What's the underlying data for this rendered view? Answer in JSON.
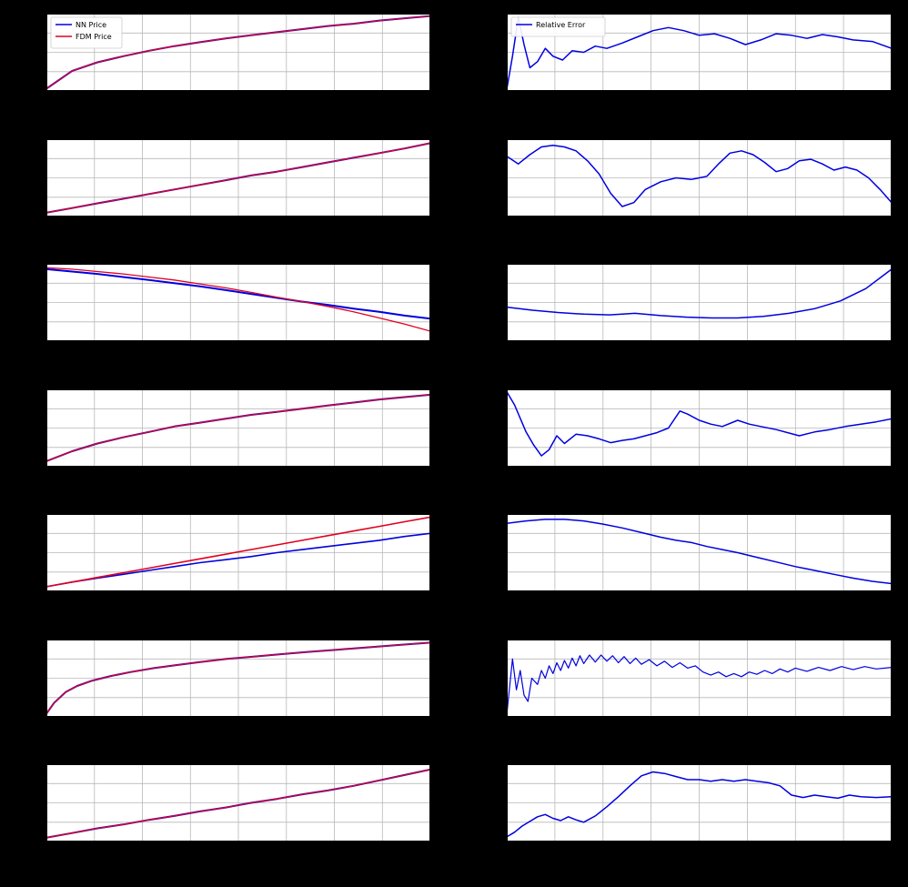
{
  "figure": {
    "background": "#000000",
    "axes_background": "#ffffff",
    "grid_color": "#b8b8b8",
    "spine_color": "#000000",
    "nn_color": "#0000e0",
    "fdm_color": "#e00020",
    "error_color": "#0000e0"
  },
  "chart_notes": "7x2 grid of matplotlib-style subplots on a black page background. Left column: NN Price vs FDM Price line charts. Right column: Relative Error line charts. Axis tick labels / subplot titles are not visible against the black background, so series values are captured in normalized axes coordinates (x: 0=left..1=right, y: 0=bottom..1=top). Grid is on; only the first row of subplots shows legends.",
  "chart_data": [
    {
      "id": "row1-price",
      "type": "line",
      "grid": true,
      "legend": {
        "position": "upper-left",
        "items": [
          {
            "label": "NN Price",
            "color": "#0000e0"
          },
          {
            "label": "FDM Price",
            "color": "#e00020"
          }
        ]
      },
      "x": [
        0,
        0.067,
        0.133,
        0.2,
        0.267,
        0.333,
        0.4,
        0.467,
        0.533,
        0.6,
        0.667,
        0.733,
        0.8,
        0.867,
        0.933,
        1
      ],
      "series": [
        {
          "name": "NN Price",
          "color": "#0000e0",
          "width": 2.0,
          "y": [
            0.03,
            0.26,
            0.37,
            0.45,
            0.52,
            0.58,
            0.63,
            0.68,
            0.72,
            0.76,
            0.8,
            0.84,
            0.87,
            0.91,
            0.94,
            0.97
          ]
        },
        {
          "name": "FDM Price",
          "color": "#e00020",
          "width": 1.3,
          "y": [
            0.03,
            0.26,
            0.37,
            0.45,
            0.52,
            0.58,
            0.63,
            0.68,
            0.72,
            0.76,
            0.8,
            0.84,
            0.87,
            0.91,
            0.94,
            0.97
          ]
        }
      ]
    },
    {
      "id": "row1-error",
      "type": "line",
      "grid": true,
      "legend": {
        "position": "upper-left",
        "items": [
          {
            "label": "Relative Error",
            "color": "#0000e0"
          }
        ]
      },
      "x": [
        0,
        0.015,
        0.03,
        0.045,
        0.06,
        0.08,
        0.1,
        0.12,
        0.145,
        0.17,
        0.2,
        0.23,
        0.26,
        0.3,
        0.34,
        0.38,
        0.42,
        0.46,
        0.5,
        0.54,
        0.58,
        0.62,
        0.66,
        0.7,
        0.74,
        0.78,
        0.82,
        0.86,
        0.9,
        0.95,
        1.0
      ],
      "series": [
        {
          "name": "Relative Error",
          "color": "#0000e0",
          "width": 1.5,
          "y": [
            0.02,
            0.45,
            0.95,
            0.6,
            0.3,
            0.38,
            0.55,
            0.45,
            0.4,
            0.52,
            0.5,
            0.58,
            0.55,
            0.62,
            0.7,
            0.78,
            0.82,
            0.78,
            0.72,
            0.74,
            0.68,
            0.6,
            0.66,
            0.74,
            0.72,
            0.68,
            0.73,
            0.7,
            0.66,
            0.64,
            0.55
          ]
        }
      ]
    },
    {
      "id": "row2-price",
      "type": "line",
      "grid": true,
      "legend": null,
      "x": [
        0,
        0.067,
        0.133,
        0.2,
        0.267,
        0.333,
        0.4,
        0.467,
        0.533,
        0.6,
        0.667,
        0.733,
        0.8,
        0.867,
        0.933,
        1
      ],
      "series": [
        {
          "name": "NN Price",
          "color": "#0000e0",
          "width": 2.0,
          "y": [
            0.05,
            0.11,
            0.17,
            0.23,
            0.29,
            0.35,
            0.41,
            0.47,
            0.53,
            0.58,
            0.64,
            0.7,
            0.76,
            0.82,
            0.88,
            0.95
          ]
        },
        {
          "name": "FDM Price",
          "color": "#e00020",
          "width": 1.3,
          "y": [
            0.05,
            0.11,
            0.17,
            0.23,
            0.29,
            0.35,
            0.41,
            0.47,
            0.53,
            0.58,
            0.64,
            0.7,
            0.76,
            0.82,
            0.88,
            0.95
          ]
        }
      ]
    },
    {
      "id": "row2-error",
      "type": "line",
      "grid": true,
      "legend": null,
      "x": [
        0,
        0.03,
        0.06,
        0.09,
        0.12,
        0.15,
        0.18,
        0.21,
        0.24,
        0.27,
        0.3,
        0.33,
        0.36,
        0.4,
        0.44,
        0.48,
        0.52,
        0.55,
        0.58,
        0.61,
        0.64,
        0.67,
        0.7,
        0.73,
        0.76,
        0.79,
        0.82,
        0.85,
        0.88,
        0.91,
        0.94,
        0.97,
        1.0
      ],
      "series": [
        {
          "name": "Relative Error",
          "color": "#0000e0",
          "width": 1.5,
          "y": [
            0.78,
            0.68,
            0.8,
            0.9,
            0.92,
            0.9,
            0.85,
            0.72,
            0.55,
            0.3,
            0.13,
            0.18,
            0.35,
            0.45,
            0.5,
            0.48,
            0.52,
            0.68,
            0.82,
            0.85,
            0.8,
            0.7,
            0.58,
            0.62,
            0.72,
            0.74,
            0.68,
            0.6,
            0.64,
            0.6,
            0.5,
            0.35,
            0.18
          ]
        }
      ]
    },
    {
      "id": "row3-price",
      "type": "line",
      "grid": true,
      "legend": null,
      "x": [
        0,
        0.067,
        0.133,
        0.2,
        0.267,
        0.333,
        0.4,
        0.467,
        0.533,
        0.6,
        0.667,
        0.733,
        0.8,
        0.867,
        0.933,
        1
      ],
      "series": [
        {
          "name": "NN Price",
          "color": "#0000e0",
          "width": 2.0,
          "y": [
            0.93,
            0.9,
            0.87,
            0.83,
            0.79,
            0.75,
            0.71,
            0.66,
            0.61,
            0.56,
            0.51,
            0.47,
            0.42,
            0.38,
            0.33,
            0.29
          ]
        },
        {
          "name": "FDM Price",
          "color": "#e00020",
          "width": 1.3,
          "y": [
            0.95,
            0.93,
            0.9,
            0.87,
            0.83,
            0.79,
            0.74,
            0.69,
            0.63,
            0.57,
            0.51,
            0.45,
            0.38,
            0.3,
            0.22,
            0.13
          ]
        }
      ]
    },
    {
      "id": "row3-error",
      "type": "line",
      "grid": true,
      "legend": null,
      "x": [
        0,
        0.067,
        0.133,
        0.2,
        0.267,
        0.333,
        0.4,
        0.467,
        0.533,
        0.6,
        0.667,
        0.733,
        0.8,
        0.867,
        0.933,
        1
      ],
      "series": [
        {
          "name": "Relative Error",
          "color": "#0000e0",
          "width": 1.5,
          "y": [
            0.44,
            0.4,
            0.37,
            0.35,
            0.34,
            0.36,
            0.33,
            0.31,
            0.3,
            0.3,
            0.32,
            0.36,
            0.42,
            0.52,
            0.68,
            0.93
          ]
        }
      ]
    },
    {
      "id": "row4-price",
      "type": "line",
      "grid": true,
      "legend": null,
      "x": [
        0,
        0.067,
        0.133,
        0.2,
        0.267,
        0.333,
        0.4,
        0.467,
        0.533,
        0.6,
        0.667,
        0.733,
        0.8,
        0.867,
        0.933,
        1
      ],
      "series": [
        {
          "name": "NN Price",
          "color": "#0000e0",
          "width": 2.0,
          "y": [
            0.07,
            0.2,
            0.3,
            0.38,
            0.45,
            0.52,
            0.57,
            0.62,
            0.67,
            0.71,
            0.75,
            0.79,
            0.83,
            0.87,
            0.9,
            0.93
          ]
        },
        {
          "name": "FDM Price",
          "color": "#e00020",
          "width": 1.3,
          "y": [
            0.07,
            0.2,
            0.3,
            0.38,
            0.45,
            0.52,
            0.57,
            0.62,
            0.67,
            0.71,
            0.75,
            0.79,
            0.83,
            0.87,
            0.9,
            0.93
          ]
        }
      ]
    },
    {
      "id": "row4-error",
      "type": "line",
      "grid": true,
      "legend": null,
      "x": [
        0,
        0.02,
        0.05,
        0.07,
        0.09,
        0.11,
        0.13,
        0.15,
        0.18,
        0.21,
        0.24,
        0.27,
        0.3,
        0.33,
        0.36,
        0.39,
        0.42,
        0.45,
        0.47,
        0.5,
        0.53,
        0.56,
        0.6,
        0.63,
        0.66,
        0.7,
        0.73,
        0.76,
        0.8,
        0.84,
        0.88,
        0.92,
        0.96,
        1.0
      ],
      "series": [
        {
          "name": "Relative Error",
          "color": "#0000e0",
          "width": 1.5,
          "y": [
            0.97,
            0.8,
            0.45,
            0.28,
            0.14,
            0.22,
            0.4,
            0.3,
            0.42,
            0.4,
            0.36,
            0.31,
            0.34,
            0.36,
            0.4,
            0.44,
            0.5,
            0.72,
            0.68,
            0.6,
            0.55,
            0.52,
            0.6,
            0.55,
            0.52,
            0.48,
            0.44,
            0.4,
            0.45,
            0.48,
            0.52,
            0.55,
            0.58,
            0.62
          ]
        }
      ]
    },
    {
      "id": "row5-price",
      "type": "line",
      "grid": true,
      "legend": null,
      "x": [
        0,
        0.067,
        0.133,
        0.2,
        0.267,
        0.333,
        0.4,
        0.467,
        0.533,
        0.6,
        0.667,
        0.733,
        0.8,
        0.867,
        0.933,
        1
      ],
      "series": [
        {
          "name": "NN Price",
          "color": "#0000e0",
          "width": 1.6,
          "y": [
            0.06,
            0.12,
            0.17,
            0.22,
            0.27,
            0.32,
            0.37,
            0.41,
            0.45,
            0.5,
            0.54,
            0.58,
            0.62,
            0.66,
            0.71,
            0.75
          ]
        },
        {
          "name": "FDM Price",
          "color": "#e00020",
          "width": 1.6,
          "y": [
            0.06,
            0.12,
            0.18,
            0.24,
            0.3,
            0.36,
            0.42,
            0.48,
            0.54,
            0.6,
            0.66,
            0.72,
            0.78,
            0.84,
            0.9,
            0.96
          ]
        }
      ]
    },
    {
      "id": "row5-error",
      "type": "line",
      "grid": true,
      "legend": null,
      "x": [
        0,
        0.05,
        0.1,
        0.15,
        0.2,
        0.25,
        0.3,
        0.35,
        0.4,
        0.44,
        0.48,
        0.52,
        0.56,
        0.6,
        0.65,
        0.7,
        0.75,
        0.8,
        0.85,
        0.9,
        0.95,
        1.0
      ],
      "series": [
        {
          "name": "Relative Error",
          "color": "#0000e0",
          "width": 1.5,
          "y": [
            0.88,
            0.91,
            0.93,
            0.93,
            0.91,
            0.87,
            0.82,
            0.76,
            0.7,
            0.66,
            0.63,
            0.58,
            0.54,
            0.5,
            0.44,
            0.38,
            0.32,
            0.27,
            0.22,
            0.17,
            0.13,
            0.1
          ]
        }
      ]
    },
    {
      "id": "row6-price",
      "type": "line",
      "grid": true,
      "legend": null,
      "x": [
        0,
        0.02,
        0.05,
        0.08,
        0.12,
        0.17,
        0.22,
        0.28,
        0.34,
        0.4,
        0.47,
        0.54,
        0.61,
        0.68,
        0.76,
        0.84,
        0.92,
        1
      ],
      "series": [
        {
          "name": "NN Price",
          "color": "#0000e0",
          "width": 2.0,
          "y": [
            0.04,
            0.18,
            0.32,
            0.4,
            0.47,
            0.53,
            0.58,
            0.63,
            0.67,
            0.71,
            0.75,
            0.78,
            0.81,
            0.84,
            0.87,
            0.9,
            0.93,
            0.96
          ]
        },
        {
          "name": "FDM Price",
          "color": "#e00020",
          "width": 1.3,
          "y": [
            0.04,
            0.18,
            0.32,
            0.4,
            0.47,
            0.53,
            0.58,
            0.63,
            0.67,
            0.71,
            0.75,
            0.78,
            0.81,
            0.84,
            0.87,
            0.9,
            0.93,
            0.96
          ]
        }
      ]
    },
    {
      "id": "row6-error",
      "type": "line",
      "grid": true,
      "legend": null,
      "x": [
        0.0,
        0.015,
        0.025,
        0.035,
        0.045,
        0.055,
        0.065,
        0.08,
        0.09,
        0.1,
        0.11,
        0.12,
        0.13,
        0.14,
        0.15,
        0.16,
        0.17,
        0.18,
        0.19,
        0.2,
        0.215,
        0.23,
        0.245,
        0.26,
        0.275,
        0.29,
        0.305,
        0.32,
        0.335,
        0.35,
        0.37,
        0.39,
        0.41,
        0.43,
        0.45,
        0.47,
        0.49,
        0.51,
        0.53,
        0.55,
        0.57,
        0.59,
        0.61,
        0.63,
        0.65,
        0.67,
        0.69,
        0.71,
        0.73,
        0.75,
        0.78,
        0.81,
        0.84,
        0.87,
        0.9,
        0.93,
        0.96,
        1.0
      ],
      "series": [
        {
          "name": "Relative Error",
          "color": "#0000e0",
          "width": 1.2,
          "y": [
            0.03,
            0.75,
            0.35,
            0.6,
            0.28,
            0.2,
            0.5,
            0.42,
            0.6,
            0.5,
            0.66,
            0.56,
            0.7,
            0.6,
            0.73,
            0.63,
            0.76,
            0.66,
            0.79,
            0.69,
            0.8,
            0.71,
            0.8,
            0.72,
            0.79,
            0.7,
            0.78,
            0.69,
            0.76,
            0.68,
            0.74,
            0.66,
            0.72,
            0.64,
            0.7,
            0.63,
            0.66,
            0.58,
            0.54,
            0.58,
            0.52,
            0.56,
            0.52,
            0.58,
            0.55,
            0.6,
            0.56,
            0.62,
            0.58,
            0.63,
            0.59,
            0.64,
            0.6,
            0.65,
            0.61,
            0.65,
            0.62,
            0.64
          ]
        }
      ]
    },
    {
      "id": "row7-price",
      "type": "line",
      "grid": true,
      "legend": null,
      "x": [
        0,
        0.067,
        0.133,
        0.2,
        0.267,
        0.333,
        0.4,
        0.467,
        0.533,
        0.6,
        0.667,
        0.733,
        0.8,
        0.867,
        0.933,
        1
      ],
      "series": [
        {
          "name": "NN Price",
          "color": "#0000e0",
          "width": 2.0,
          "y": [
            0.05,
            0.11,
            0.17,
            0.22,
            0.28,
            0.33,
            0.39,
            0.44,
            0.5,
            0.55,
            0.61,
            0.66,
            0.72,
            0.79,
            0.86,
            0.93
          ]
        },
        {
          "name": "FDM Price",
          "color": "#e00020",
          "width": 1.3,
          "y": [
            0.05,
            0.11,
            0.17,
            0.22,
            0.28,
            0.33,
            0.39,
            0.44,
            0.5,
            0.55,
            0.61,
            0.66,
            0.72,
            0.79,
            0.86,
            0.93
          ]
        }
      ]
    },
    {
      "id": "row7-error",
      "type": "line",
      "grid": true,
      "legend": null,
      "x": [
        0,
        0.02,
        0.04,
        0.06,
        0.08,
        0.1,
        0.12,
        0.14,
        0.16,
        0.18,
        0.2,
        0.23,
        0.26,
        0.29,
        0.32,
        0.35,
        0.38,
        0.41,
        0.44,
        0.47,
        0.5,
        0.53,
        0.56,
        0.59,
        0.62,
        0.65,
        0.68,
        0.71,
        0.74,
        0.77,
        0.8,
        0.83,
        0.86,
        0.89,
        0.92,
        0.96,
        1.0
      ],
      "series": [
        {
          "name": "Relative Error",
          "color": "#0000e0",
          "width": 1.5,
          "y": [
            0.06,
            0.12,
            0.2,
            0.26,
            0.32,
            0.35,
            0.3,
            0.27,
            0.32,
            0.28,
            0.25,
            0.33,
            0.45,
            0.58,
            0.72,
            0.85,
            0.9,
            0.88,
            0.84,
            0.8,
            0.8,
            0.78,
            0.8,
            0.78,
            0.8,
            0.78,
            0.76,
            0.72,
            0.6,
            0.57,
            0.6,
            0.58,
            0.56,
            0.6,
            0.58,
            0.57,
            0.58
          ]
        }
      ]
    }
  ]
}
